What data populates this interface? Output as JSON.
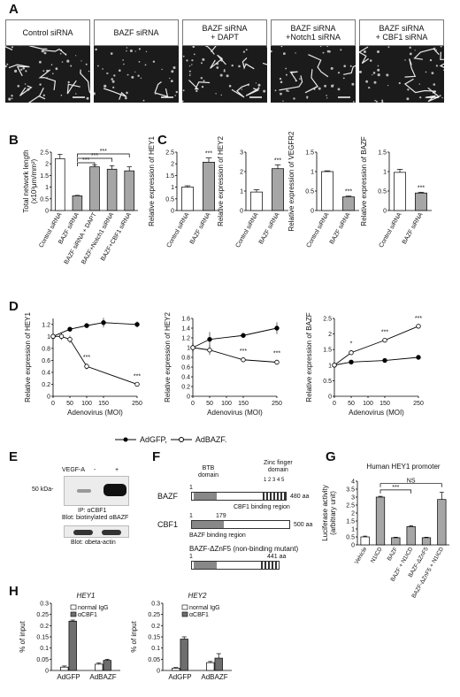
{
  "panels": {
    "A": "A",
    "B": "B",
    "C": "C",
    "D": "D",
    "E": "E",
    "F": "F",
    "G": "G",
    "H": "H"
  },
  "panel_a": {
    "images": [
      {
        "label": "Control siRNA"
      },
      {
        "label": "BAZF siRNA"
      },
      {
        "label": "BAZF siRNA\n+ DAPT"
      },
      {
        "label": "BAZF siRNA\n+Notch1 siRNA"
      },
      {
        "label": "BAZF siRNA\n+ CBF1 siRNA"
      }
    ]
  },
  "colors": {
    "bar_white": "#ffffff",
    "bar_gray": "#a6a6a6",
    "bar_dark": "#6e6e6e",
    "line": "#000000",
    "bg_img": "#1b1b1b"
  },
  "chart_data": [
    {
      "id": "B",
      "type": "bar",
      "ylabel": "Total network length\n(x10³μm/mm²)",
      "ylim": [
        0,
        2.5
      ],
      "yticks": [
        "0",
        "0.5",
        "1",
        "1.5",
        "2",
        "2.5"
      ],
      "categories": [
        "Control siRNA",
        "BAZF siRNA",
        "BAZF siRNA\n+ DAPT",
        "BAZF+Notch1 siRNA",
        "BAZF+CBF1 siRNA"
      ],
      "values": [
        2.22,
        0.63,
        1.87,
        1.77,
        1.7
      ],
      "errors": [
        0.18,
        0.02,
        0.09,
        0.15,
        0.17
      ],
      "significance": [
        "***",
        "***",
        "***"
      ]
    },
    {
      "id": "C1",
      "type": "bar",
      "ylabel": "Relative expression of HEY1",
      "ylim": [
        0,
        2.5
      ],
      "yticks": [
        "0",
        "0.5",
        "1",
        "1.5",
        "2",
        "2.5"
      ],
      "categories": [
        "Control siRNA",
        "BAZF siRNA"
      ],
      "values": [
        1.0,
        2.07
      ],
      "errors": [
        0.06,
        0.18
      ],
      "sig": "***"
    },
    {
      "id": "C2",
      "type": "bar",
      "ylabel": "Relative expression of HEY2",
      "ylim": [
        0,
        3
      ],
      "yticks": [
        "0",
        "1",
        "2",
        "3"
      ],
      "categories": [
        "Control siRNA",
        "BAZF siRNA"
      ],
      "values": [
        0.95,
        2.15
      ],
      "errors": [
        0.12,
        0.2
      ],
      "sig": "***"
    },
    {
      "id": "C3",
      "type": "bar",
      "ylabel": "Relative expression of VEGFR2",
      "ylim": [
        0,
        1.5
      ],
      "yticks": [
        "0",
        "0.5",
        "1",
        "1.5"
      ],
      "categories": [
        "Control siRNA",
        "BAZF siRNA"
      ],
      "values": [
        1.0,
        0.35
      ],
      "errors": [
        0.02,
        0.02
      ],
      "sig": "***"
    },
    {
      "id": "C4",
      "type": "bar",
      "ylabel": "Relative expression of BAZF",
      "ylim": [
        0,
        1.5
      ],
      "yticks": [
        "0",
        "0.5",
        "1",
        "1.5"
      ],
      "categories": [
        "Control siRNA",
        "BAZF siRNA"
      ],
      "values": [
        0.98,
        0.45
      ],
      "errors": [
        0.08,
        0.02
      ],
      "sig": "***"
    },
    {
      "id": "D1",
      "type": "line",
      "ylabel": "Relative expression of HEY1",
      "xlabel": "Adenovirus (MOI)",
      "x": [
        0,
        50,
        100,
        150,
        250
      ],
      "xticks": [
        "0",
        "50",
        "100",
        "150",
        "250"
      ],
      "xlim": [
        0,
        250
      ],
      "ylim": [
        0,
        1.3
      ],
      "yticks": [
        "0",
        "0.2",
        "0.4",
        "0.6",
        "0.8",
        "1",
        "1.2"
      ],
      "series": [
        {
          "name": "AdGFP",
          "marker": "filled",
          "values": [
            1.0,
            1.12,
            1.18,
            1.23,
            1.2
          ],
          "errors": [
            0.05,
            0.04,
            0.03,
            0.08,
            0.05
          ],
          "x": [
            0,
            50,
            100,
            150,
            250
          ]
        },
        {
          "name": "AdBAZF",
          "marker": "open",
          "values": [
            1.0,
            1.0,
            0.95,
            0.5,
            0.2
          ],
          "errors": [
            0.05,
            0.06,
            0.06,
            0.05,
            0.03
          ],
          "x": [
            0,
            25,
            50,
            100,
            250
          ]
        }
      ],
      "sig": [
        "***",
        "***"
      ]
    },
    {
      "id": "D2",
      "type": "line",
      "ylabel": "Relative expression of HEY2",
      "xlabel": "Adenovirus (MOI)",
      "x": [
        0,
        50,
        100,
        150,
        250
      ],
      "xticks": [
        "0",
        "50",
        "100",
        "150",
        "250"
      ],
      "xlim": [
        0,
        250
      ],
      "ylim": [
        0,
        1.6
      ],
      "yticks": [
        "0",
        "0.2",
        "0.4",
        "0.6",
        "0.8",
        "1",
        "1.2",
        "1.4",
        "1.6"
      ],
      "series": [
        {
          "name": "AdGFP",
          "marker": "filled",
          "values": [
            1.0,
            1.17,
            1.25,
            1.4
          ],
          "errors": [
            0.1,
            0.15,
            0.05,
            0.12
          ],
          "x": [
            0,
            50,
            150,
            250
          ]
        },
        {
          "name": "AdBAZF",
          "marker": "open",
          "values": [
            1.0,
            0.95,
            0.75,
            0.7
          ],
          "errors": [
            0.08,
            0.1,
            0.04,
            0.05
          ],
          "x": [
            0,
            50,
            150,
            250
          ]
        }
      ],
      "sig": [
        "***",
        "***"
      ]
    },
    {
      "id": "D3",
      "type": "line",
      "ylabel": "Relative expression of BAZF",
      "xlabel": "Adenovirus (MOI)",
      "x": [
        0,
        50,
        100,
        150,
        250
      ],
      "xticks": [
        "0",
        "50",
        "100",
        "150",
        "250"
      ],
      "xlim": [
        0,
        250
      ],
      "ylim": [
        0,
        2.5
      ],
      "yticks": [
        "0",
        "0.5",
        "1",
        "1.5",
        "2",
        "2.5"
      ],
      "series": [
        {
          "name": "AdGFP",
          "marker": "filled",
          "values": [
            1.0,
            1.1,
            1.15,
            1.25
          ],
          "errors": [
            0.03,
            0.05,
            0.07,
            0.04
          ],
          "x": [
            0,
            50,
            150,
            250
          ]
        },
        {
          "name": "AdBAZF",
          "marker": "open",
          "values": [
            1.0,
            1.4,
            1.8,
            2.25
          ],
          "errors": [
            0.03,
            0.08,
            0.06,
            0.05
          ],
          "x": [
            0,
            50,
            150,
            250
          ]
        }
      ],
      "sig": [
        "*",
        "***",
        "***"
      ]
    },
    {
      "id": "G",
      "type": "bar",
      "title": "Human HEY1 promoter",
      "ylabel": "Luciferase activity\n(arbitrary unit)",
      "ylim": [
        0,
        4
      ],
      "yticks": [
        "0",
        "0.5",
        "1",
        "1.5",
        "2",
        "2.5",
        "3",
        "3.5",
        "4"
      ],
      "categories": [
        "Vehicle",
        "N1ICD",
        "BAZF",
        "BAZF\n+ N1ICD",
        "BAZF-ΔZnF5",
        "BAZF-ΔZnF5\n+ N1ICD"
      ],
      "values": [
        0.5,
        3.0,
        0.45,
        1.15,
        0.45,
        2.85
      ],
      "errors": [
        0.05,
        0.05,
        0.03,
        0.05,
        0.03,
        0.45
      ],
      "sig": [
        "***",
        "NS"
      ]
    },
    {
      "id": "H1",
      "type": "bar",
      "title": "HEY1",
      "ylabel": "% of input",
      "ylim": [
        0,
        0.3
      ],
      "yticks": [
        "0",
        "0.05",
        "0.1",
        "0.15",
        "0.2",
        "0.25",
        "0.3"
      ],
      "categories": [
        "AdGFP",
        "AdBAZF"
      ],
      "series": [
        {
          "name": "normal IgG",
          "values": [
            0.015,
            0.028
          ],
          "errors": [
            0.005,
            0.005
          ]
        },
        {
          "name": "αCBF1",
          "values": [
            0.22,
            0.045
          ],
          "errors": [
            0.005,
            0.005
          ]
        }
      ]
    },
    {
      "id": "H2",
      "type": "bar",
      "title": "HEY2",
      "ylabel": "% of input",
      "ylim": [
        0,
        0.3
      ],
      "yticks": [
        "0",
        "0.05",
        "0.1",
        "0.15",
        "0.2",
        "0.25",
        "0.3"
      ],
      "categories": [
        "AdGFP",
        "AdBAZF"
      ],
      "series": [
        {
          "name": "normal IgG",
          "values": [
            0.01,
            0.035
          ],
          "errors": [
            0.003,
            0.005
          ]
        },
        {
          "name": "αCBF1",
          "values": [
            0.14,
            0.055
          ],
          "errors": [
            0.01,
            0.02
          ]
        }
      ]
    }
  ],
  "legend_d": {
    "gfp": "AdGFP,",
    "bazf": "AdBAZF."
  },
  "panel_e": {
    "vegf": "VEGF-A",
    "minus": "-",
    "plus": "+",
    "mw": "50 kDa-",
    "ip": "IP: αCBF1",
    "blot1": "Blot: biotinylated αBAZF",
    "blot2": "Blot: αbeta-actin"
  },
  "panel_f": {
    "bazf": "BAZF",
    "cbf1": "CBF1",
    "mutant": "BAZF-ΔZnF5 (non-binding mutant)",
    "btb": "BTB\ndomain",
    "zinc": "Zinc finger\ndomain",
    "zn_nums": "1 2 3 4 5",
    "aa480": "480 aa",
    "aa500": "500 aa",
    "aa441": "441 aa",
    "n1": "1",
    "n179": "179",
    "cbf1_region": "CBF1 binding region",
    "bazf_region": "BAZF binding region"
  }
}
